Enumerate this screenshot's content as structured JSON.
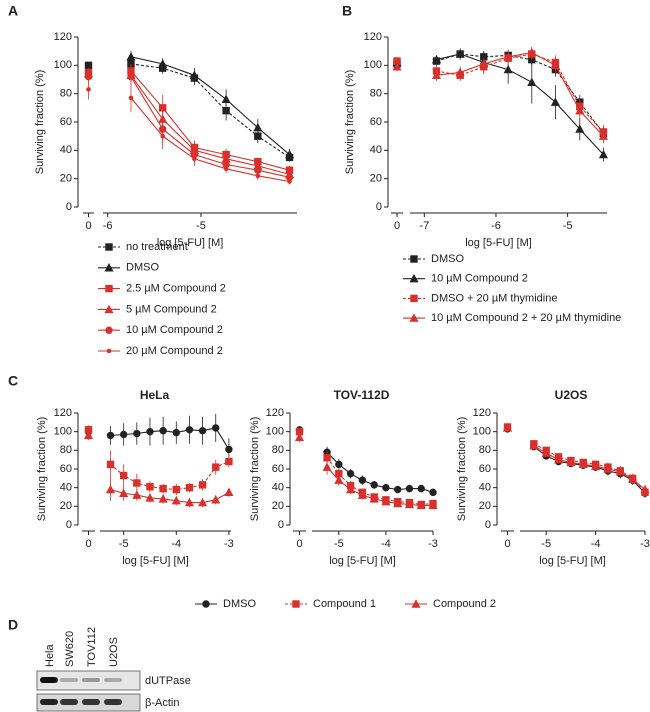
{
  "panels": [
    "A",
    "B",
    "C",
    "D"
  ],
  "chart_data": [
    {
      "type": "line",
      "x_label": "log [5-FU] [M]",
      "y_label": "Surviving fraction (%)",
      "control_tick": 0,
      "x": [
        -5.75,
        -5.41,
        -5.07,
        -4.73,
        -4.39,
        -4.05
      ],
      "xlim": [
        -6.05,
        -3.97
      ],
      "xticks": [
        -6,
        -5
      ],
      "ylim": [
        0,
        120
      ],
      "yticks": [
        0,
        20,
        40,
        60,
        80,
        100,
        120
      ],
      "series": [
        {
          "name": "no treatment",
          "color": "#222222",
          "dash": true,
          "marker": "square",
          "control": 100,
          "control_error": 2,
          "values": [
            101,
            98,
            91,
            68,
            50,
            35
          ],
          "errors": [
            3,
            4,
            5,
            7,
            5,
            3
          ]
        },
        {
          "name": "DMSO",
          "color": "#222222",
          "dash": false,
          "marker": "triangle",
          "control": 94,
          "control_error": 3,
          "values": [
            106,
            101,
            93,
            76,
            56,
            37
          ],
          "errors": [
            4,
            4,
            5,
            7,
            6,
            4
          ]
        },
        {
          "name": "2.5 µM Compound 2",
          "color": "#d9302c",
          "dash": false,
          "marker": "square",
          "control": 95,
          "control_error": 3,
          "values": [
            96,
            70,
            42,
            37,
            32,
            26
          ],
          "errors": [
            5,
            9,
            5,
            4,
            3,
            3
          ]
        },
        {
          "name": "5 µM Compound 2",
          "color": "#d9302c",
          "dash": false,
          "marker": "triangle",
          "control": 94,
          "control_error": 3,
          "values": [
            93,
            62,
            40,
            34,
            29,
            23
          ],
          "errors": [
            5,
            9,
            6,
            4,
            3,
            3
          ]
        },
        {
          "name": "10 µM Compound 2",
          "color": "#d9302c",
          "dash": false,
          "marker": "circle",
          "control": 92,
          "control_error": 3,
          "values": [
            92,
            55,
            37,
            30,
            26,
            21
          ],
          "errors": [
            6,
            10,
            5,
            4,
            3,
            2
          ]
        },
        {
          "name": "20 µM Compound 2",
          "color": "#d9302c",
          "dash": false,
          "marker": "dot",
          "control": 83,
          "control_error": 7,
          "values": [
            77,
            50,
            34,
            27,
            22,
            18
          ],
          "errors": [
            10,
            9,
            5,
            3,
            3,
            2
          ]
        }
      ]
    },
    {
      "type": "line",
      "x_label": "log [5-FU] [M]",
      "y_label": "Surviving fraction (%)",
      "control_tick": 0,
      "x": [
        -6.83,
        -6.5,
        -6.17,
        -5.83,
        -5.5,
        -5.17,
        -4.83,
        -4.5
      ],
      "xlim": [
        -7.2,
        -4.45
      ],
      "xticks": [
        -7,
        -6,
        -5
      ],
      "ylim": [
        0,
        120
      ],
      "yticks": [
        0,
        20,
        40,
        60,
        80,
        100,
        120
      ],
      "series": [
        {
          "name": "DMSO",
          "color": "#222222",
          "dash": true,
          "marker": "square",
          "control": 101,
          "control_error": 3,
          "values": [
            103,
            108,
            106,
            107,
            104,
            97,
            74,
            52
          ],
          "errors": [
            3,
            3,
            4,
            4,
            4,
            5,
            5,
            5
          ]
        },
        {
          "name": "10 µM Compound 2",
          "color": "#222222",
          "dash": false,
          "marker": "triangle",
          "control": 102,
          "control_error": 3,
          "values": [
            104,
            108,
            102,
            97,
            88,
            74,
            55,
            37
          ],
          "errors": [
            3,
            4,
            8,
            10,
            15,
            12,
            8,
            5
          ]
        },
        {
          "name": "DMSO + 20 µM thymidine",
          "color": "#d9302c",
          "dash": true,
          "marker": "square",
          "control": 103,
          "control_error": 3,
          "values": [
            96,
            93,
            99,
            105,
            108,
            102,
            71,
            53
          ],
          "errors": [
            4,
            4,
            5,
            4,
            4,
            5,
            5,
            5
          ]
        },
        {
          "name": "10 µM Compound 2 + 20 µM thymidine",
          "color": "#d9302c",
          "dash": false,
          "marker": "triangle",
          "control": 99,
          "control_error": 3,
          "values": [
            93,
            95,
            101,
            106,
            109,
            100,
            68,
            50
          ],
          "errors": [
            4,
            4,
            4,
            4,
            4,
            5,
            5,
            5
          ]
        }
      ]
    },
    {
      "type": "line",
      "title": "HeLa",
      "x_label": "log [5-FU] [M]",
      "y_label": "Surviving fraction (%)",
      "control_tick": 0,
      "x": [
        -5.25,
        -5.0,
        -4.75,
        -4.5,
        -4.25,
        -4.0,
        -3.75,
        -3.5,
        -3.25,
        -3.0
      ],
      "xlim": [
        -5.45,
        -2.96
      ],
      "xticks": [
        -5,
        -4,
        -3
      ],
      "ylim": [
        0,
        120
      ],
      "yticks": [
        0,
        20,
        40,
        60,
        80,
        100,
        120
      ],
      "series": [
        {
          "name": "DMSO",
          "color": "#222222",
          "dash": false,
          "marker": "circle",
          "control": 100,
          "control_error": 5,
          "values": [
            96,
            97,
            98,
            100,
            101,
            99,
            102,
            101,
            104,
            81
          ],
          "errors": [
            10,
            12,
            12,
            15,
            15,
            12,
            15,
            15,
            15,
            12
          ]
        },
        {
          "name": "Compound 1",
          "color": "#d9302c",
          "dash": true,
          "marker": "square",
          "control": 102,
          "control_error": 5,
          "values": [
            65,
            53,
            45,
            41,
            39,
            38,
            40,
            43,
            62,
            68
          ],
          "errors": [
            15,
            12,
            10,
            6,
            5,
            6,
            5,
            6,
            8,
            6
          ]
        },
        {
          "name": "Compound 2",
          "color": "#d9302c",
          "dash": false,
          "marker": "triangle",
          "control": 96,
          "control_error": 5,
          "values": [
            38,
            34,
            32,
            29,
            28,
            26,
            24,
            24,
            27,
            35
          ],
          "errors": [
            12,
            8,
            6,
            5,
            5,
            5,
            5,
            5,
            5,
            5
          ]
        }
      ]
    },
    {
      "type": "line",
      "title": "TOV-112D",
      "x_label": "log [5-FU] [M]",
      "y_label": "Surviving fraction (%)",
      "control_tick": 0,
      "x": [
        -5.25,
        -5.0,
        -4.75,
        -4.5,
        -4.25,
        -4.0,
        -3.75,
        -3.5,
        -3.25,
        -3.0
      ],
      "xlim": [
        -5.57,
        -3.0
      ],
      "xticks": [
        -5,
        -4,
        -3
      ],
      "ylim": [
        0,
        120
      ],
      "yticks": [
        0,
        20,
        40,
        60,
        80,
        100,
        120
      ],
      "series": [
        {
          "color": "#222222",
          "dash": false,
          "marker": "circle",
          "control": 102,
          "control_error": 4,
          "values": [
            78,
            65,
            55,
            48,
            43,
            40,
            38,
            39,
            39,
            35
          ],
          "errors": [
            6,
            6,
            5,
            5,
            4,
            4,
            4,
            4,
            4,
            4
          ]
        },
        {
          "color": "#d9302c",
          "dash": true,
          "marker": "square",
          "control": 100,
          "control_error": 4,
          "values": [
            72,
            55,
            42,
            35,
            30,
            27,
            25,
            24,
            22,
            23
          ],
          "errors": [
            7,
            6,
            5,
            4,
            3,
            3,
            3,
            3,
            3,
            3
          ]
        },
        {
          "color": "#d9302c",
          "dash": false,
          "marker": "triangle",
          "control": 94,
          "control_error": 5,
          "values": [
            62,
            48,
            38,
            32,
            28,
            25,
            23,
            22,
            21,
            21
          ],
          "errors": [
            8,
            6,
            5,
            4,
            3,
            3,
            3,
            3,
            3,
            3
          ]
        }
      ]
    },
    {
      "type": "line",
      "title": "U2OS",
      "x_label": "log [5-FU] [M]",
      "y_label": "Surviving fraction (%)",
      "control_tick": 0,
      "x": [
        -5.25,
        -5.0,
        -4.75,
        -4.5,
        -4.25,
        -4.0,
        -3.75,
        -3.5,
        -3.25,
        -3.0
      ],
      "xlim": [
        -5.53,
        -3.0
      ],
      "xticks": [
        -5,
        -4,
        -3
      ],
      "ylim": [
        0,
        120
      ],
      "yticks": [
        0,
        20,
        40,
        60,
        80,
        100,
        120
      ],
      "series": [
        {
          "color": "#222222",
          "dash": false,
          "marker": "circle",
          "control": 103,
          "control_error": 4,
          "values": [
            84,
            74,
            68,
            66,
            64,
            62,
            58,
            55,
            48,
            34
          ],
          "errors": [
            4,
            4,
            4,
            4,
            4,
            4,
            5,
            5,
            5,
            5
          ]
        },
        {
          "color": "#d9302c",
          "dash": true,
          "marker": "square",
          "control": 105,
          "control_error": 4,
          "values": [
            87,
            80,
            73,
            69,
            67,
            65,
            62,
            58,
            50,
            35
          ],
          "errors": [
            4,
            4,
            4,
            4,
            4,
            4,
            5,
            5,
            5,
            5
          ]
        },
        {
          "color": "#d9302c",
          "dash": false,
          "marker": "triangle",
          "control": 104,
          "control_error": 4,
          "values": [
            85,
            77,
            70,
            67,
            65,
            63,
            60,
            57,
            49,
            38
          ],
          "errors": [
            4,
            4,
            4,
            4,
            4,
            4,
            5,
            5,
            5,
            5
          ]
        }
      ]
    }
  ],
  "blot": {
    "lanes": [
      "Hela",
      "SW620",
      "TOV112",
      "U2OS"
    ],
    "rows": [
      "dUTPase",
      "β-Actin"
    ]
  }
}
